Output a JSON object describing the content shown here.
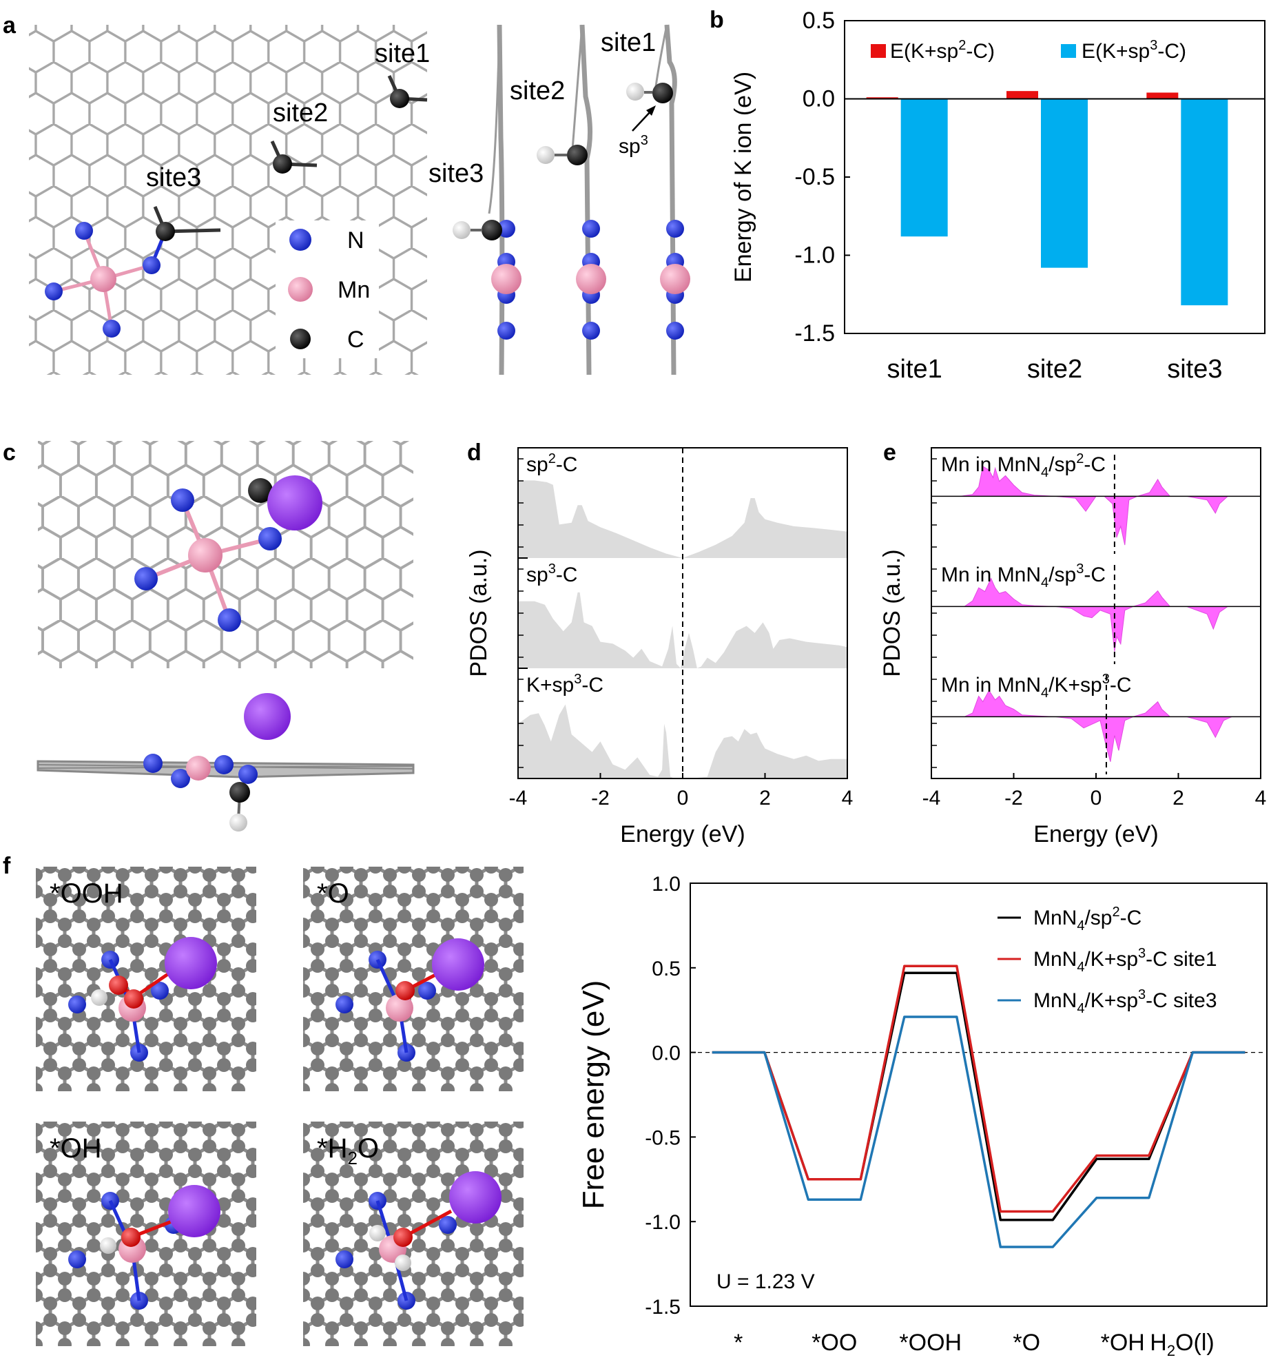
{
  "panel_labels": {
    "a": "a",
    "b": "b",
    "c": "c",
    "d": "d",
    "e": "e",
    "f": "f"
  },
  "panel_a": {
    "top_site_labels": [
      "site1",
      "site2",
      "site3"
    ],
    "side_site_labels": [
      "site1",
      "site2",
      "site3"
    ],
    "sp3_label_base": "sp",
    "sp3_label_sup": "3",
    "legend": [
      "N",
      "Mn",
      "C"
    ],
    "colors": {
      "N": "#1f2fd6",
      "Mn": "#e99ab4",
      "C": "#111111",
      "H": "#f0f0f0",
      "K": "#8a2be2",
      "lattice": "#9a9a9a"
    }
  },
  "panel_f_structures": {
    "labels": [
      "*OOH",
      "*O",
      "*OH",
      "*H2O"
    ],
    "h2o_label": {
      "pre": "*H",
      "sub": "2",
      "post": "O"
    },
    "colors": {
      "O": "#e01010",
      "C": "#7a7a7a"
    }
  },
  "chart_data": [
    {
      "id": "b",
      "type": "bar",
      "categories": [
        "site1",
        "site2",
        "site3"
      ],
      "ylabel": "Energy of K ion (eV)",
      "ylim": [
        -1.5,
        0.5
      ],
      "yticks": [
        0.5,
        0.0,
        -0.5,
        -1.0,
        -1.5
      ],
      "ytick_labels": [
        "0.5",
        "0.0",
        "-0.5",
        "-1.0",
        "-1.5"
      ],
      "legend_placement": "top",
      "series": [
        {
          "name": "E(K+sp2-C)",
          "label_pre": "E(K+sp",
          "label_sup": "2",
          "label_post": "-C)",
          "color": "#e81010",
          "values": [
            0.01,
            0.05,
            0.04
          ]
        },
        {
          "name": "E(K+sp3-C)",
          "label_pre": "E(K+sp",
          "label_sup": "3",
          "label_post": "-C)",
          "color": "#00aeef",
          "values": [
            -0.88,
            -1.08,
            -1.32
          ]
        }
      ]
    },
    {
      "id": "d",
      "type": "area",
      "xlabel": "Energy (eV)",
      "ylabel": "PDOS (a.u.)",
      "xlim": [
        -4,
        4
      ],
      "xticks": [
        -4,
        -2,
        0,
        2,
        4
      ],
      "xtick_labels": [
        "-4",
        "-2",
        "0",
        "2",
        "4"
      ],
      "fermi_level": 0,
      "fill_color": "#dcdcdc",
      "series": [
        {
          "name": "sp2-C",
          "label_pre": "sp",
          "label_sup": "2",
          "label_post": "-C",
          "x": [
            -4,
            -3.6,
            -3.3,
            -3.15,
            -3.0,
            -2.7,
            -2.55,
            -2.45,
            -2.3,
            -2.0,
            -1.6,
            -1.2,
            -0.8,
            -0.4,
            0,
            0.4,
            0.8,
            1.2,
            1.5,
            1.65,
            1.75,
            1.85,
            2.0,
            2.3,
            2.7,
            3.2,
            3.6,
            4
          ],
          "y": [
            0.88,
            0.88,
            0.86,
            0.83,
            0.38,
            0.4,
            0.6,
            0.6,
            0.42,
            0.35,
            0.28,
            0.2,
            0.12,
            0.05,
            0.0,
            0.07,
            0.15,
            0.25,
            0.4,
            0.68,
            0.68,
            0.52,
            0.44,
            0.4,
            0.36,
            0.34,
            0.32,
            0.3
          ]
        },
        {
          "name": "sp3-C",
          "label_pre": "sp",
          "label_sup": "3",
          "label_post": "-C",
          "x": [
            -4,
            -3.6,
            -3.35,
            -3.15,
            -2.9,
            -2.7,
            -2.55,
            -2.5,
            -2.4,
            -2.2,
            -2.0,
            -1.7,
            -1.4,
            -1.2,
            -1.0,
            -0.8,
            -0.5,
            -0.35,
            -0.25,
            -0.15,
            -0.05,
            0.05,
            0.15,
            0.25,
            0.35,
            0.45,
            0.6,
            0.8,
            1.0,
            1.3,
            1.55,
            1.75,
            1.95,
            2.1,
            2.2,
            2.35,
            2.6,
            3.0,
            3.4,
            3.8,
            4
          ],
          "y": [
            0.76,
            0.76,
            0.72,
            0.56,
            0.42,
            0.52,
            0.86,
            0.86,
            0.52,
            0.48,
            0.3,
            0.28,
            0.2,
            0.12,
            0.22,
            0.08,
            0.02,
            0.22,
            0.48,
            0.05,
            0.0,
            0.22,
            0.4,
            0.22,
            0.0,
            0.02,
            0.12,
            0.06,
            0.18,
            0.42,
            0.48,
            0.4,
            0.52,
            0.4,
            0.22,
            0.32,
            0.34,
            0.3,
            0.28,
            0.26,
            0.24
          ]
        },
        {
          "name": "K+sp3-C",
          "label_pre": "K+sp",
          "label_sup": "3",
          "label_post": "-C",
          "x": [
            -4,
            -3.7,
            -3.5,
            -3.35,
            -3.2,
            -3.0,
            -2.85,
            -2.7,
            -2.5,
            -2.2,
            -2.0,
            -1.7,
            -1.4,
            -1.1,
            -0.8,
            -0.6,
            -0.5,
            -0.45,
            -0.4,
            -0.3,
            -0.2,
            0,
            0.2,
            0.6,
            0.8,
            1.0,
            1.2,
            1.35,
            1.5,
            1.65,
            1.8,
            1.9,
            2.0,
            2.3,
            2.7,
            3.0,
            3.3,
            3.6,
            4
          ],
          "y": [
            0.62,
            0.72,
            0.74,
            0.6,
            0.42,
            0.72,
            0.84,
            0.5,
            0.42,
            0.3,
            0.42,
            0.16,
            0.1,
            0.24,
            0.04,
            0.02,
            0.1,
            0.62,
            0.52,
            0.02,
            0.0,
            0.0,
            0.0,
            0.02,
            0.3,
            0.46,
            0.48,
            0.42,
            0.56,
            0.5,
            0.52,
            0.42,
            0.34,
            0.28,
            0.22,
            0.26,
            0.2,
            0.22,
            0.22
          ]
        }
      ]
    },
    {
      "id": "e",
      "type": "area",
      "xlabel": "Energy (eV)",
      "ylabel": "PDOS (a.u.)",
      "xlim": [
        -4,
        4
      ],
      "xticks": [
        -4,
        -2,
        0,
        2,
        4
      ],
      "xtick_labels": [
        "-4",
        "-2",
        "0",
        "2",
        "4"
      ],
      "fill_color": "#ff66ff",
      "series": [
        {
          "name": "Mn in MnN4/sp2-C",
          "label_pre": "Mn in MnN",
          "label_sub": "4",
          "label_mid": "/sp",
          "label_sup": "2",
          "label_post": "-C",
          "fermi_level": 0.45,
          "x": [
            -4,
            -3.3,
            -3.0,
            -2.85,
            -2.75,
            -2.6,
            -2.5,
            -2.45,
            -2.35,
            -2.2,
            -2.0,
            -1.8,
            -1.5,
            -1.0,
            -0.5,
            -0.25,
            0,
            0.2,
            0.4,
            0.5,
            0.6,
            0.7,
            0.8,
            1.0,
            1.3,
            1.5,
            1.6,
            1.8,
            2.2,
            2.7,
            2.9,
            3.0,
            3.2,
            4
          ],
          "y": [
            0.0,
            0.0,
            0.05,
            0.25,
            0.8,
            0.7,
            0.5,
            0.75,
            0.4,
            0.55,
            0.3,
            0.1,
            0.03,
            0.0,
            -0.05,
            -0.4,
            0.0,
            0.0,
            -0.2,
            -1.1,
            -0.8,
            -1.3,
            -0.1,
            0.0,
            0.1,
            0.45,
            0.25,
            0.0,
            0.0,
            -0.1,
            -0.45,
            -0.2,
            0.0,
            0.0
          ]
        },
        {
          "name": "Mn in MnN4/sp3-C",
          "label_pre": "Mn in MnN",
          "label_sub": "4",
          "label_mid": "/sp",
          "label_sup": "3",
          "label_post": "-C",
          "fermi_level": 0.45,
          "x": [
            -4,
            -3.2,
            -3.0,
            -2.85,
            -2.7,
            -2.55,
            -2.45,
            -2.35,
            -2.2,
            -2.0,
            -1.8,
            -1.5,
            -1.0,
            -0.6,
            -0.3,
            -0.1,
            0.1,
            0.35,
            0.45,
            0.5,
            0.6,
            0.7,
            0.9,
            1.2,
            1.5,
            1.6,
            1.8,
            2.2,
            2.7,
            2.85,
            3.0,
            3.2,
            4
          ],
          "y": [
            0.0,
            0.0,
            0.15,
            0.5,
            0.4,
            0.75,
            0.5,
            0.35,
            0.4,
            0.2,
            0.05,
            0.02,
            0.0,
            -0.05,
            -0.25,
            -0.3,
            -0.1,
            -0.2,
            -1.2,
            -0.8,
            -1.0,
            -0.1,
            0.0,
            0.1,
            0.42,
            0.25,
            0.0,
            0.0,
            -0.2,
            -0.6,
            -0.15,
            0.0,
            0.0
          ]
        },
        {
          "name": "Mn in MnN4/K+sp3-C",
          "label_pre": "Mn in MnN",
          "label_sub": "4",
          "label_mid": "/K+sp",
          "label_sup": "3",
          "label_post": "-C",
          "fermi_level": 0.25,
          "x": [
            -4,
            -3.2,
            -3.0,
            -2.85,
            -2.75,
            -2.6,
            -2.45,
            -2.35,
            -2.2,
            -2.0,
            -1.8,
            -1.4,
            -1.0,
            -0.6,
            -0.3,
            -0.1,
            0.1,
            0.25,
            0.35,
            0.45,
            0.55,
            0.7,
            0.9,
            1.2,
            1.5,
            1.6,
            1.8,
            2.2,
            2.7,
            2.9,
            3.1,
            3.3,
            4
          ],
          "y": [
            0.0,
            0.0,
            0.1,
            0.55,
            0.4,
            0.7,
            0.45,
            0.55,
            0.3,
            0.2,
            0.05,
            0.02,
            0.0,
            -0.05,
            -0.3,
            -0.2,
            -0.1,
            -0.8,
            -1.2,
            -0.5,
            -0.9,
            -0.1,
            0.0,
            0.1,
            0.4,
            0.2,
            0.0,
            0.0,
            -0.15,
            -0.55,
            -0.1,
            0.0,
            0.0
          ]
        }
      ]
    },
    {
      "id": "f",
      "type": "line",
      "categories": [
        "*",
        "*OO",
        "*OOH",
        "*O",
        "*OH",
        "H2O(l)"
      ],
      "category_labels": [
        "*",
        "*OO",
        "*OOH",
        "*O",
        "*OH",
        ""
      ],
      "h2o_label": {
        "pre": "H",
        "sub": "2",
        "post": "O(l)"
      },
      "ylabel": "Free energy (eV)",
      "ylim": [
        -1.5,
        1.0
      ],
      "yticks": [
        1.0,
        0.5,
        0.0,
        -0.5,
        -1.0,
        -1.5
      ],
      "ytick_labels": [
        "1.0",
        "0.5",
        "0.0",
        "-0.5",
        "-1.0",
        "-1.5"
      ],
      "annotation": "U = 1.23 V",
      "legend_placement": "top-right",
      "series": [
        {
          "name": "MnN4/sp2-C",
          "label_pre": "MnN",
          "label_sub": "4",
          "label_mid": "/sp",
          "label_sup": "2",
          "label_post": "-C",
          "color": "#000000",
          "values": [
            0.0,
            -0.75,
            0.47,
            -0.99,
            -0.63,
            0.0
          ]
        },
        {
          "name": "MnN4/K+sp3-C site1",
          "label_pre": "MnN",
          "label_sub": "4",
          "label_mid": "/K+sp",
          "label_sup": "3",
          "label_post": "-C site1",
          "color": "#d62020",
          "values": [
            0.0,
            -0.75,
            0.51,
            -0.94,
            -0.61,
            0.0
          ]
        },
        {
          "name": "MnN4/K+sp3-C site3",
          "label_pre": "MnN",
          "label_sub": "4",
          "label_mid": "/K+sp",
          "label_sup": "3",
          "label_post": "-C site3",
          "color": "#1f77b4",
          "values": [
            0.0,
            -0.87,
            0.21,
            -1.15,
            -0.86,
            0.0
          ]
        }
      ]
    }
  ]
}
